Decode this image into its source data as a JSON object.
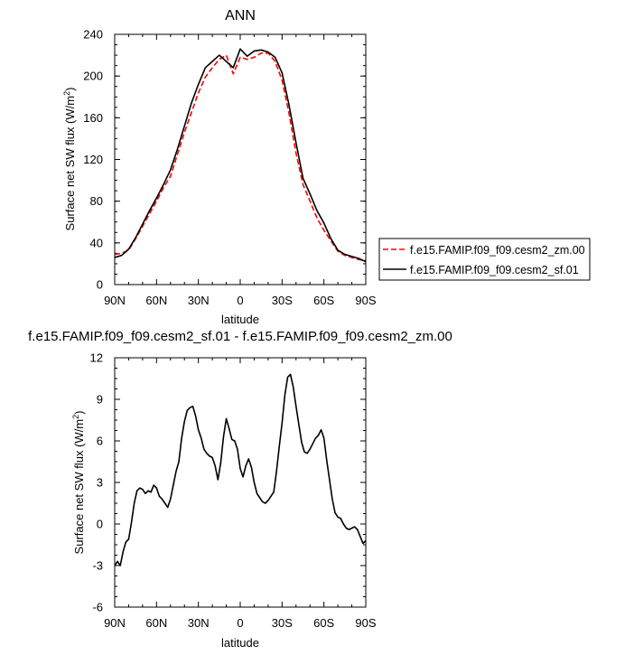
{
  "colors": {
    "series_zm": "#ff0000",
    "series_sf": "#000000",
    "axis": "#000000"
  },
  "chart_data": [
    {
      "type": "line",
      "title": "ANN",
      "xlabel": "latitude",
      "ylabel": "Surface net SW flux (W/m",
      "ylabel_sup": "2",
      "ylabel_close": ")",
      "xlim": [
        90,
        -90
      ],
      "ylim": [
        0,
        240
      ],
      "xticks": [
        90,
        60,
        30,
        0,
        -30,
        -60,
        -90
      ],
      "xtick_labels": [
        "90N",
        "60N",
        "30N",
        "0",
        "30S",
        "60S",
        "90S"
      ],
      "yticks": [
        0,
        40,
        80,
        120,
        160,
        200,
        240
      ],
      "ytick_labels": [
        "0",
        "40",
        "80",
        "120",
        "160",
        "200",
        "240"
      ],
      "legend_position": "right",
      "series": [
        {
          "name": "f.e15.FAMIP.f09_f09.cesm2_zm.00",
          "style": "dashed",
          "color": "#ff0000",
          "x": [
            90,
            85,
            80,
            75,
            70,
            65,
            60,
            55,
            50,
            45,
            40,
            35,
            30,
            25,
            20,
            15,
            10,
            5,
            0,
            -5,
            -10,
            -15,
            -20,
            -25,
            -30,
            -35,
            -40,
            -45,
            -50,
            -55,
            -60,
            -65,
            -70,
            -75,
            -80,
            -85,
            -90
          ],
          "y": [
            29,
            30,
            33,
            44,
            56,
            68,
            80,
            93,
            104,
            125,
            146,
            165,
            184,
            199,
            208,
            216,
            220,
            202,
            218,
            216,
            218,
            222,
            222,
            214,
            196,
            164,
            126,
            96,
            80,
            64,
            52,
            42,
            32,
            28,
            26,
            24,
            23
          ]
        },
        {
          "name": "f.e15.FAMIP.f09_f09.cesm2_sf.01",
          "style": "solid",
          "color": "#000000",
          "x": [
            90,
            85,
            80,
            75,
            70,
            65,
            60,
            55,
            50,
            45,
            40,
            35,
            30,
            25,
            20,
            15,
            10,
            5,
            0,
            -5,
            -10,
            -15,
            -20,
            -25,
            -30,
            -35,
            -40,
            -45,
            -50,
            -55,
            -60,
            -65,
            -70,
            -75,
            -80,
            -85,
            -90
          ],
          "y": [
            26,
            28,
            34,
            45,
            58,
            71,
            83,
            96,
            110,
            130,
            152,
            174,
            192,
            208,
            214,
            220,
            214,
            208,
            226,
            219,
            224,
            225,
            223,
            218,
            203,
            172,
            136,
            102,
            87,
            71,
            59,
            44,
            33,
            29,
            27,
            25,
            22
          ]
        }
      ]
    },
    {
      "type": "line",
      "title": "f.e15.FAMIP.f09_f09.cesm2_sf.01 - f.e15.FAMIP.f09_f09.cesm2_zm.00",
      "xlabel": "latitude",
      "ylabel": "Surface net SW flux (W/m",
      "ylabel_sup": "2",
      "ylabel_close": ")",
      "xlim": [
        90,
        -90
      ],
      "ylim": [
        -6,
        12
      ],
      "xticks": [
        90,
        60,
        30,
        0,
        -30,
        -60,
        -90
      ],
      "xtick_labels": [
        "90N",
        "60N",
        "30N",
        "0",
        "30S",
        "60S",
        "90S"
      ],
      "yticks": [
        -6,
        -3,
        0,
        3,
        6,
        9,
        12
      ],
      "ytick_labels": [
        "-6",
        "-3",
        "0",
        "3",
        "6",
        "9",
        "12"
      ],
      "series": [
        {
          "style": "solid",
          "color": "#000000",
          "x": [
            90,
            88,
            86,
            84,
            82,
            80,
            78,
            76,
            74,
            72,
            70,
            68,
            66,
            64,
            62,
            60,
            58,
            56,
            54,
            52,
            50,
            48,
            46,
            44,
            42,
            40,
            38,
            36,
            34,
            32,
            30,
            28,
            26,
            24,
            22,
            20,
            18,
            16,
            14,
            12,
            10,
            8,
            6,
            4,
            2,
            0,
            -2,
            -4,
            -6,
            -8,
            -10,
            -12,
            -14,
            -16,
            -18,
            -20,
            -22,
            -24,
            -26,
            -28,
            -30,
            -32,
            -34,
            -36,
            -38,
            -40,
            -42,
            -44,
            -46,
            -48,
            -50,
            -52,
            -54,
            -56,
            -58,
            -60,
            -62,
            -64,
            -66,
            -68,
            -70,
            -72,
            -74,
            -76,
            -78,
            -80,
            -82,
            -84,
            -86,
            -88,
            -90
          ],
          "y": [
            -3.0,
            -2.7,
            -3.0,
            -2.0,
            -1.3,
            -1.1,
            0.1,
            1.5,
            2.4,
            2.6,
            2.5,
            2.2,
            2.4,
            2.3,
            2.8,
            2.6,
            2.0,
            1.8,
            1.5,
            1.2,
            1.8,
            2.8,
            3.8,
            4.5,
            6.2,
            7.4,
            8.2,
            8.4,
            8.5,
            7.8,
            6.8,
            6.2,
            5.4,
            5.1,
            4.9,
            4.8,
            4.2,
            3.2,
            4.4,
            6.3,
            7.6,
            6.9,
            6.1,
            6.0,
            5.4,
            4.0,
            3.4,
            4.2,
            4.7,
            4.1,
            3.0,
            2.2,
            1.9,
            1.6,
            1.5,
            1.7,
            2.0,
            2.3,
            3.8,
            5.6,
            7.3,
            9.3,
            10.6,
            10.8,
            9.9,
            8.5,
            7.2,
            5.9,
            5.2,
            5.1,
            5.4,
            5.8,
            6.2,
            6.4,
            6.8,
            6.2,
            4.6,
            3.2,
            1.8,
            0.8,
            0.5,
            0.4,
            0.0,
            -0.3,
            -0.4,
            -0.3,
            -0.2,
            -0.4,
            -0.9,
            -1.4,
            -1.2
          ]
        }
      ]
    }
  ]
}
